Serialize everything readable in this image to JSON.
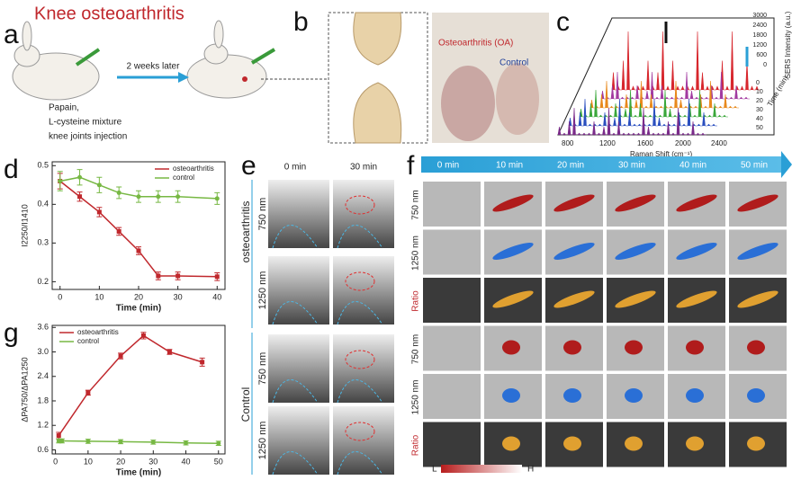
{
  "panels": {
    "a": {
      "letter": "a",
      "title": "Knee osteoarthritis",
      "arrow_text": "2 weeks later",
      "caption": [
        "Papain,",
        "L-cysteine mixture",
        "knee joints injection"
      ]
    },
    "b": {
      "letter": "b",
      "oa_label": "Osteoarthritis (OA)",
      "control_label": "Control"
    },
    "c": {
      "letter": "c",
      "x_label": "Raman Shift (cm⁻¹)",
      "x_ticks": [
        "800",
        "1200",
        "1600",
        "2000",
        "2400"
      ],
      "z_label": "SERS Intensity (a.u.)",
      "z_ticks": [
        "0",
        "600",
        "1200",
        "1800",
        "2400",
        "3000"
      ],
      "t_label": "Time (min)",
      "t_ticks": [
        "0",
        "10",
        "20",
        "30",
        "40",
        "50"
      ]
    },
    "e": {
      "letter": "e",
      "columns": [
        "0 min",
        "30 min"
      ],
      "groups": [
        "osteoarthritis",
        "Control"
      ],
      "rows": [
        "750 nm",
        "1250 nm",
        "750 nm",
        "1250 nm"
      ]
    },
    "f": {
      "letter": "f",
      "times": [
        "0 min",
        "10 min",
        "20 min",
        "30 min",
        "40 min",
        "50 min"
      ],
      "rows": [
        "750 nm",
        "1250 nm",
        "Ratio",
        "750 nm",
        "1250 nm",
        "Ratio"
      ],
      "scale_low": "L",
      "scale_high": "H"
    }
  },
  "chart_data": [
    {
      "type": "line",
      "letter": "d",
      "x_label": "Time (min)",
      "y_label": "I2250/I1410",
      "legend": "upper right",
      "x": [
        0,
        5,
        10,
        15,
        20,
        25,
        30,
        40
      ],
      "series": [
        {
          "name": "osteoarthritis",
          "color": "#c0282d",
          "marker": "square",
          "values": [
            0.46,
            0.42,
            0.38,
            0.33,
            0.28,
            0.215,
            0.215,
            0.213
          ],
          "errors": [
            0.02,
            0.012,
            0.012,
            0.01,
            0.01,
            0.01,
            0.01,
            0.01
          ]
        },
        {
          "name": "control",
          "color": "#77b843",
          "marker": "circle",
          "values": [
            0.46,
            0.47,
            0.45,
            0.43,
            0.42,
            0.42,
            0.42,
            0.415
          ],
          "errors": [
            0.025,
            0.02,
            0.02,
            0.015,
            0.015,
            0.015,
            0.015,
            0.015
          ]
        }
      ],
      "xlim": [
        -2,
        42
      ],
      "xticks": [
        0,
        10,
        20,
        30,
        40
      ],
      "ylim": [
        0.18,
        0.51
      ],
      "yticks": [
        0.2,
        0.3,
        0.4,
        0.5
      ]
    },
    {
      "type": "line",
      "letter": "g",
      "x_label": "Time (min)",
      "y_label": "ΔPA750/ΔPA1250",
      "legend": "upper left",
      "series": [
        {
          "name": "osteoarthritis",
          "color": "#c0282d",
          "marker": "square",
          "x": [
            1,
            10,
            20,
            27,
            35,
            45
          ],
          "values": [
            0.95,
            2.0,
            2.9,
            3.4,
            3.0,
            2.75
          ],
          "errors": [
            0.08,
            0.06,
            0.07,
            0.08,
            0.06,
            0.1
          ]
        },
        {
          "name": "control",
          "color": "#77b843",
          "marker": "circle",
          "x": [
            1,
            2,
            10,
            20,
            30,
            40,
            50
          ],
          "values": [
            0.82,
            0.82,
            0.81,
            0.8,
            0.79,
            0.77,
            0.76
          ],
          "errors": [
            0.05,
            0.05,
            0.05,
            0.05,
            0.05,
            0.05,
            0.05
          ]
        }
      ],
      "xlim": [
        -1,
        52
      ],
      "xticks": [
        0,
        10,
        20,
        30,
        40,
        50
      ],
      "ylim": [
        0.5,
        3.65
      ],
      "yticks": [
        0.6,
        1.2,
        1.8,
        2.4,
        {
          "value": 3.0,
          "label": "3.0"
        },
        3.6
      ]
    }
  ]
}
